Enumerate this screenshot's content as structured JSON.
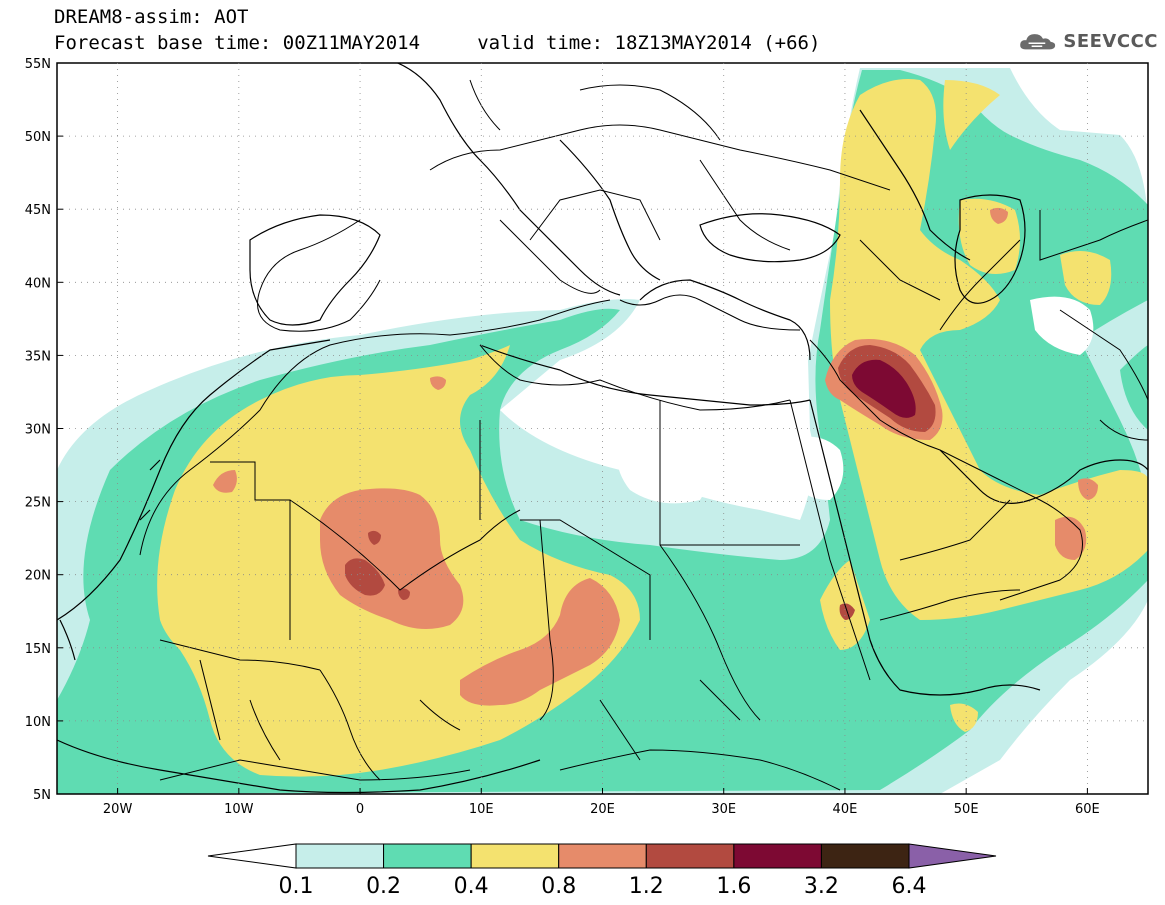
{
  "header": {
    "title": "DREAM8-assim: AOT",
    "subtitle": "Forecast base time: 00Z11MAY2014     valid time: 18Z13MAY2014 (+66)",
    "logo_text": "SEEVCCC",
    "logo_icon": "cloud-logo-icon"
  },
  "map": {
    "lon_range": [
      -25,
      65
    ],
    "lat_range": [
      5,
      55
    ],
    "lat_ticks": [
      "55N",
      "50N",
      "45N",
      "40N",
      "35N",
      "30N",
      "25N",
      "20N",
      "15N",
      "10N",
      "5N"
    ],
    "lon_ticks": [
      "20W",
      "10W",
      "0",
      "10E",
      "20E",
      "30E",
      "40E",
      "50E",
      "60E"
    ]
  },
  "colorbar": {
    "labels": [
      "0.1",
      "0.2",
      "0.4",
      "0.8",
      "1.2",
      "1.6",
      "3.2",
      "6.4"
    ],
    "colors": [
      "#ffffff",
      "#c6eeea",
      "#5fdcb2",
      "#f4e26f",
      "#e68b6a",
      "#b24a40",
      "#7d0933",
      "#3d2413",
      "#8a60a8"
    ]
  }
}
